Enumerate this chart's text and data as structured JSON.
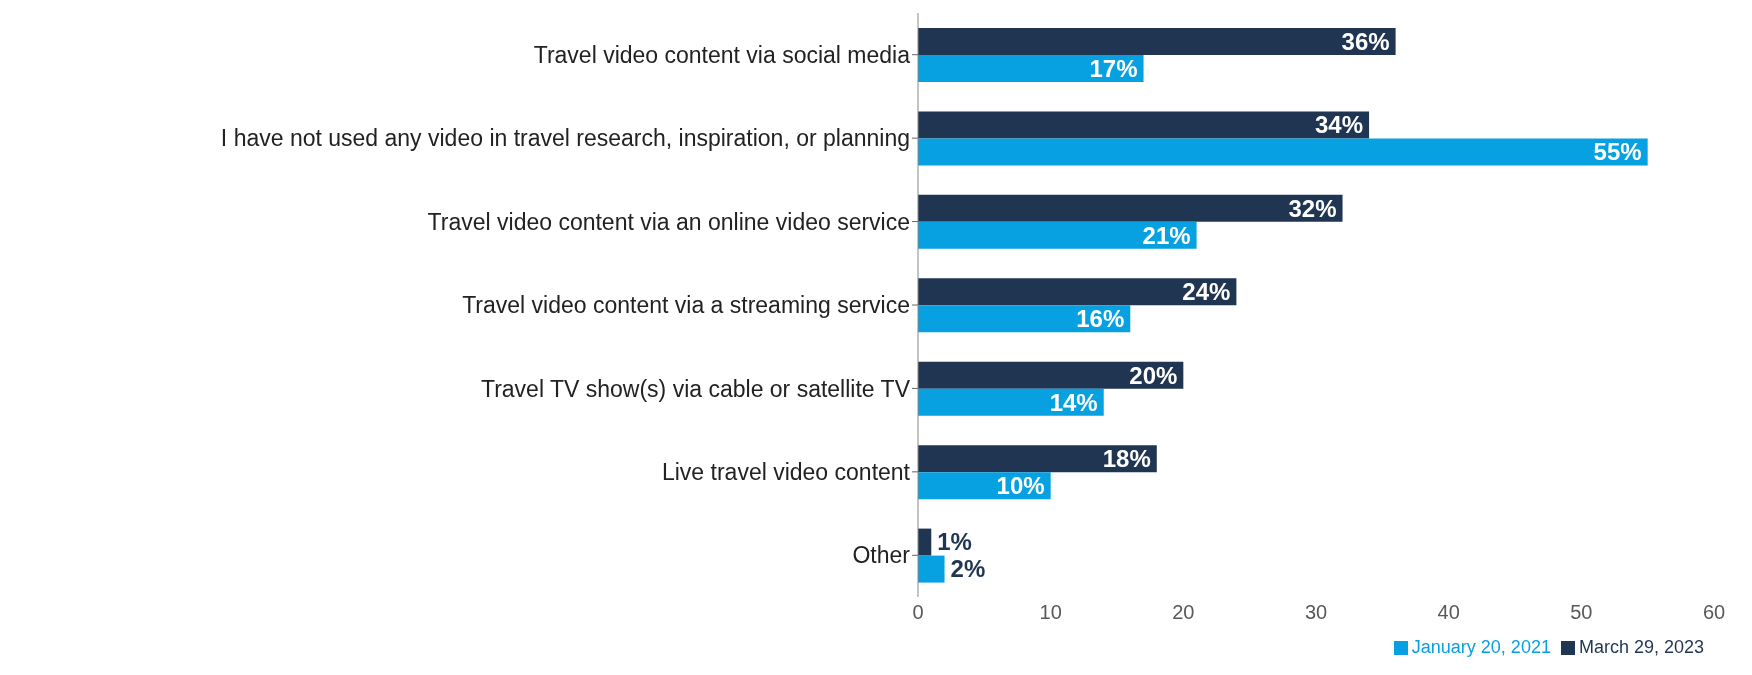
{
  "chart_data": {
    "type": "bar",
    "orientation": "horizontal",
    "categories": [
      "Travel video content via social media",
      "I have not used any video in travel research, inspiration, or planning",
      "Travel video content via an online video service",
      "Travel video content via a streaming service",
      "Travel TV show(s) via cable or satellite TV",
      "Live travel video content",
      "Other"
    ],
    "series": [
      {
        "name": "March 29, 2023",
        "color": "#1f3552",
        "values": [
          36,
          34,
          32,
          24,
          20,
          18,
          1
        ],
        "value_labels": [
          "36%",
          "34%",
          "32%",
          "24%",
          "20%",
          "18%",
          "1%"
        ]
      },
      {
        "name": "January 20, 2021",
        "color": "#07a0e0",
        "values": [
          17,
          55,
          21,
          16,
          14,
          10,
          2
        ],
        "value_labels": [
          "17%",
          "55%",
          "21%",
          "16%",
          "14%",
          "10%",
          "2%"
        ]
      }
    ],
    "xlim": [
      0,
      60
    ],
    "xticks": [
      0,
      10,
      20,
      30,
      40,
      50,
      60
    ],
    "legend": "bottom right"
  }
}
